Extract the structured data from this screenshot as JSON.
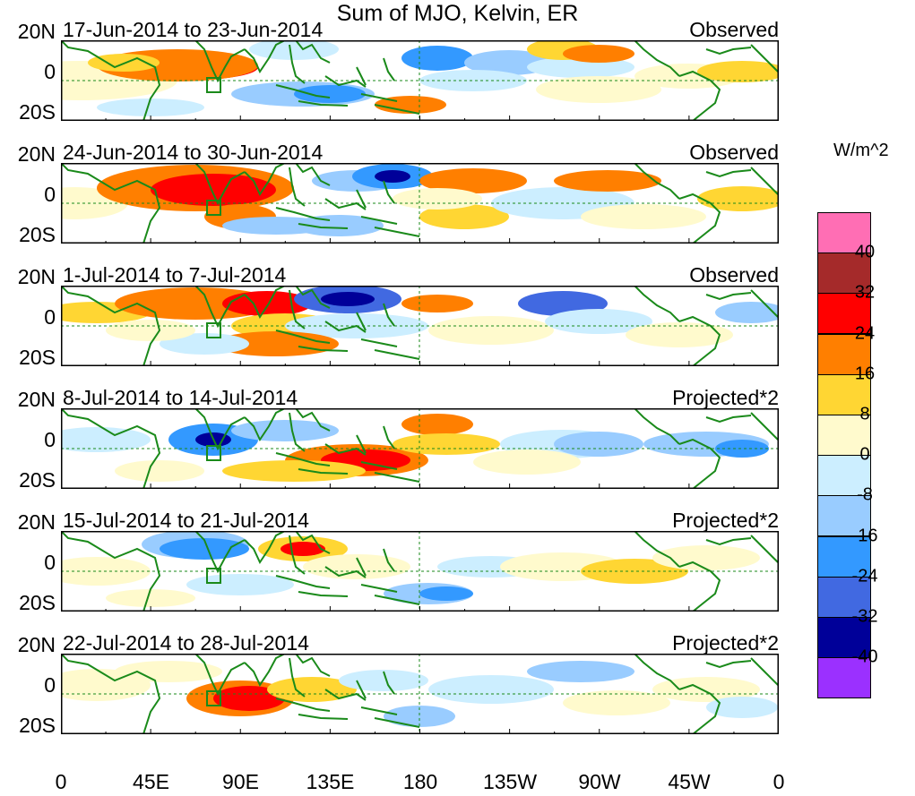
{
  "title": "Sum of MJO, Kelvin, ER",
  "panels": [
    {
      "dates": "17-Jun-2014 to 23-Jun-2014",
      "mode": "Observed"
    },
    {
      "dates": "24-Jun-2014 to 30-Jun-2014",
      "mode": "Observed"
    },
    {
      "dates": "1-Jul-2014 to 7-Jul-2014",
      "mode": "Observed"
    },
    {
      "dates": "8-Jul-2014 to 14-Jul-2014",
      "mode": "Projected*2"
    },
    {
      "dates": "15-Jul-2014 to 21-Jul-2014",
      "mode": "Projected*2"
    },
    {
      "dates": "22-Jul-2014 to 28-Jul-2014",
      "mode": "Projected*2"
    }
  ],
  "y_labels": {
    "north": "20N",
    "equator": "0",
    "south": "20S"
  },
  "x_labels": [
    "0",
    "45E",
    "90E",
    "135E",
    "180",
    "135W",
    "90W",
    "45W",
    "0"
  ],
  "legend": {
    "unit": "W/m^2",
    "labels": [
      "40",
      "32",
      "24",
      "16",
      "8",
      "0",
      "-8",
      "-16",
      "-24",
      "-32",
      "-40"
    ],
    "colors": [
      "#ff6eb4",
      "#a52a2a",
      "#ff0000",
      "#ff7f00",
      "#ffd633",
      "#fffacd",
      "#cceeff",
      "#99ccff",
      "#3399ff",
      "#4169e1",
      "#000099",
      "#9b30ff"
    ]
  },
  "colors": {
    "coast": "#1a8a1a",
    "line": "#000000"
  }
}
